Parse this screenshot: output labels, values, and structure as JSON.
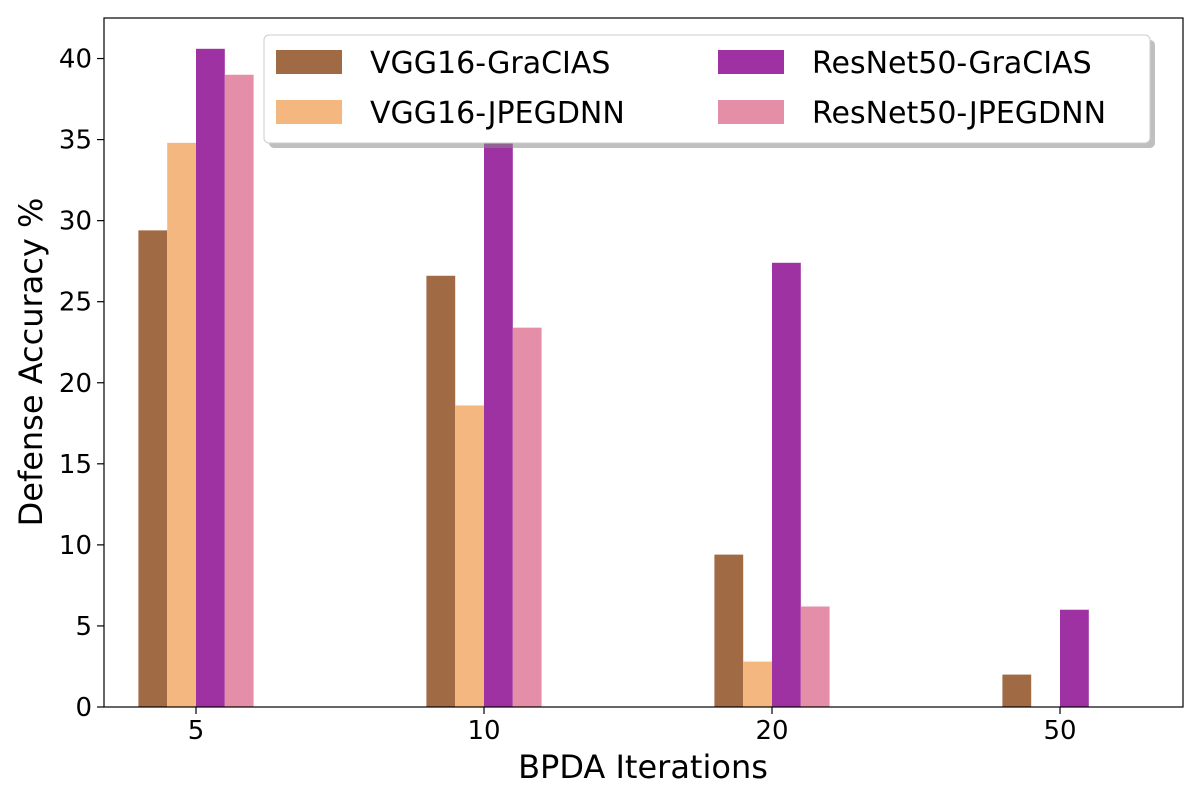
{
  "chart_data": {
    "type": "bar",
    "title": "",
    "xlabel": "BPDA Iterations",
    "ylabel": "Defense Accuracy %",
    "categories": [
      "5",
      "10",
      "20",
      "50"
    ],
    "ylim": [
      0,
      42.5
    ],
    "yticks": [
      0,
      5,
      10,
      15,
      20,
      25,
      30,
      35,
      40
    ],
    "grid": false,
    "legend_position": "top-right",
    "legend_columns": 2,
    "series": [
      {
        "name": "VGG16-GraCIAS",
        "color": "#a06a44",
        "values": [
          29.4,
          26.6,
          9.4,
          2.0
        ]
      },
      {
        "name": "VGG16-JPEGDNN",
        "color": "#f5b780",
        "values": [
          34.8,
          18.6,
          2.8,
          0
        ]
      },
      {
        "name": "ResNet50-GraCIAS",
        "color": "#9e32a2",
        "values": [
          40.6,
          35.0,
          27.4,
          6.0
        ]
      },
      {
        "name": "ResNet50-JPEGDNN",
        "color": "#e58ea8",
        "values": [
          39.0,
          23.4,
          6.2,
          0
        ]
      }
    ]
  }
}
